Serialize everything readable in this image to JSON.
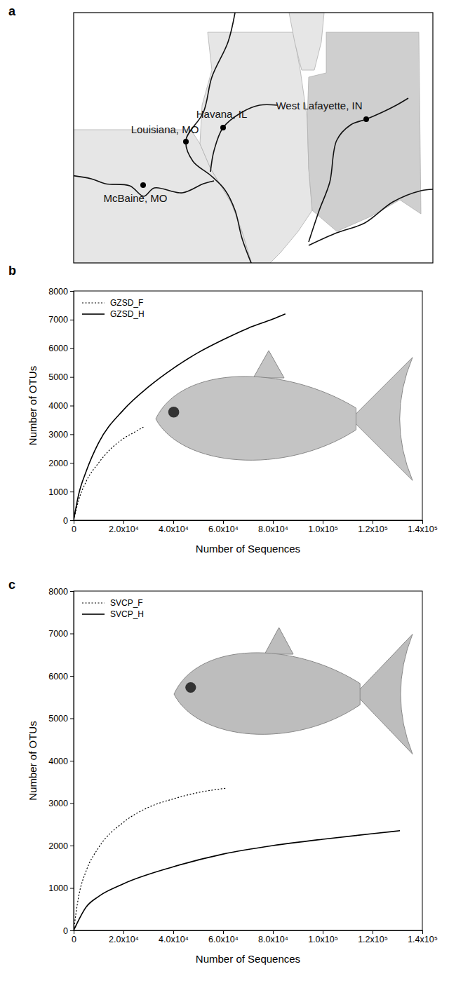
{
  "map": {
    "letter": "a",
    "sites": [
      {
        "label": "Havana, IL"
      },
      {
        "label": "Louisiana, MO"
      },
      {
        "label": "McBaine, MO"
      },
      {
        "label": "West Lafayette, IN"
      }
    ]
  },
  "chart_data": [
    {
      "type": "line",
      "letter": "b",
      "x_label": "Number of Sequences",
      "y_label": "Number of OTUs",
      "xlim": [
        0,
        140000
      ],
      "xticks": [
        0,
        {
          "value": 20000,
          "label": "2.0x10⁴"
        },
        {
          "value": 40000,
          "label": "4.0x10⁴"
        },
        {
          "value": 60000,
          "label": "6.0x10⁴"
        },
        {
          "value": 80000,
          "label": "8.0x10⁴"
        },
        {
          "value": 100000,
          "label": "1.0x10⁵"
        },
        {
          "value": 120000,
          "label": "1.2x10⁵"
        },
        {
          "value": 140000,
          "label": "1.4x10⁵"
        }
      ],
      "ylim": [
        0,
        8000
      ],
      "yticks": [
        0,
        1000,
        2000,
        3000,
        4000,
        5000,
        6000,
        7000,
        8000
      ],
      "grid": false,
      "legend": "upper left",
      "series": [
        {
          "name": "GZSD_F",
          "color": "#000000",
          "line_style": "dotted",
          "x": [
            0,
            2000,
            5000,
            10000,
            15000,
            20000,
            25000,
            28000
          ],
          "values": [
            0,
            700,
            1350,
            2000,
            2500,
            2850,
            3100,
            3250
          ]
        },
        {
          "name": "GZSD_H",
          "color": "#000000",
          "line_style": "solid",
          "x": [
            0,
            2000,
            5000,
            10000,
            20000,
            30000,
            40000,
            50000,
            60000,
            70000,
            80000,
            85000
          ],
          "values": [
            0,
            900,
            1700,
            2700,
            3850,
            4650,
            5300,
            5850,
            6300,
            6700,
            7020,
            7200
          ]
        }
      ]
    },
    {
      "type": "line",
      "letter": "c",
      "x_label": "Number of Sequences",
      "y_label": "Number of OTUs",
      "xlim": [
        0,
        140000
      ],
      "xticks": [
        0,
        {
          "value": 20000,
          "label": "2.0x10⁴"
        },
        {
          "value": 40000,
          "label": "4.0x10⁴"
        },
        {
          "value": 60000,
          "label": "6.0x10⁴"
        },
        {
          "value": 80000,
          "label": "8.0x10⁴"
        },
        {
          "value": 100000,
          "label": "1.0x10⁵"
        },
        {
          "value": 120000,
          "label": "1.2x10⁵"
        },
        {
          "value": 140000,
          "label": "1.4x10⁵"
        }
      ],
      "ylim": [
        0,
        8000
      ],
      "yticks": [
        0,
        1000,
        2000,
        3000,
        4000,
        5000,
        6000,
        7000,
        8000
      ],
      "grid": false,
      "legend": "upper left",
      "series": [
        {
          "name": "SVCP_F",
          "color": "#000000",
          "line_style": "dotted",
          "x": [
            0,
            2000,
            5000,
            10000,
            20000,
            30000,
            40000,
            50000,
            61000
          ],
          "values": [
            0,
            800,
            1400,
            1950,
            2550,
            2900,
            3100,
            3250,
            3350
          ]
        },
        {
          "name": "SVCP_H",
          "color": "#000000",
          "line_style": "solid",
          "x": [
            0,
            5000,
            10000,
            20000,
            40000,
            60000,
            80000,
            100000,
            120000,
            131000
          ],
          "values": [
            0,
            550,
            800,
            1100,
            1500,
            1800,
            2000,
            2150,
            2280,
            2350
          ]
        }
      ]
    }
  ]
}
